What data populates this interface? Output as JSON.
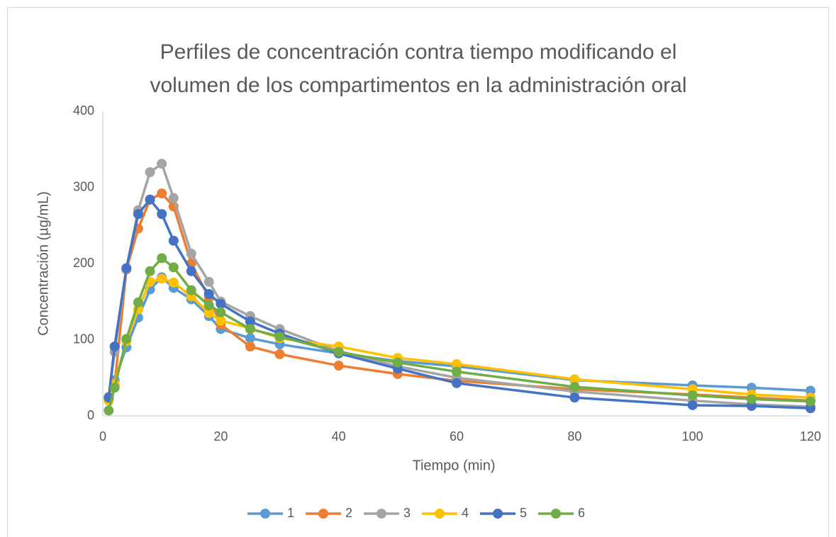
{
  "chart_data": {
    "type": "line",
    "title": [
      "Perfiles de concentración contra tiempo modificando el",
      "volumen de los compartimentos en la administración oral"
    ],
    "x_label": "Tiempo (min)",
    "y_label": "Concentración (µg/mL)",
    "x": [
      1,
      2,
      4,
      6,
      8,
      10,
      12,
      15,
      18,
      20,
      25,
      30,
      40,
      50,
      60,
      80,
      100,
      110,
      120
    ],
    "series": [
      {
        "name": "1",
        "color": "#5b9bd5",
        "values": [
          22,
          47,
          90,
          129,
          166,
          182,
          168,
          153,
          131,
          114,
          102,
          94,
          82,
          72,
          65,
          47,
          40,
          37,
          33
        ]
      },
      {
        "name": "2",
        "color": "#ed7d31",
        "values": [
          20,
          40,
          192,
          246,
          284,
          292,
          275,
          200,
          155,
          120,
          91,
          81,
          66,
          55,
          46,
          35,
          28,
          24,
          20
        ]
      },
      {
        "name": "3",
        "color": "#a5a5a5",
        "values": [
          25,
          84,
          193,
          270,
          320,
          331,
          286,
          213,
          176,
          150,
          131,
          114,
          85,
          65,
          50,
          32,
          20,
          15,
          12
        ]
      },
      {
        "name": "4",
        "color": "#ffc000",
        "values": [
          20,
          42,
          98,
          140,
          176,
          180,
          175,
          157,
          135,
          125,
          115,
          102,
          91,
          76,
          68,
          48,
          35,
          28,
          24
        ]
      },
      {
        "name": "5",
        "color": "#4472c4",
        "values": [
          24,
          91,
          194,
          265,
          284,
          265,
          230,
          190,
          160,
          147,
          124,
          108,
          82,
          62,
          43,
          24,
          14,
          13,
          10
        ]
      },
      {
        "name": "6",
        "color": "#70ad47",
        "values": [
          7,
          37,
          101,
          149,
          190,
          207,
          195,
          165,
          145,
          136,
          114,
          104,
          84,
          70,
          58,
          38,
          27,
          22,
          19
        ]
      }
    ],
    "xlim": [
      0,
      120
    ],
    "xticks": [
      0,
      20,
      40,
      60,
      80,
      100,
      120
    ],
    "ylim": [
      0,
      400
    ],
    "yticks": [
      0,
      100,
      200,
      300,
      400
    ],
    "grid": false,
    "legend": "bottom"
  }
}
